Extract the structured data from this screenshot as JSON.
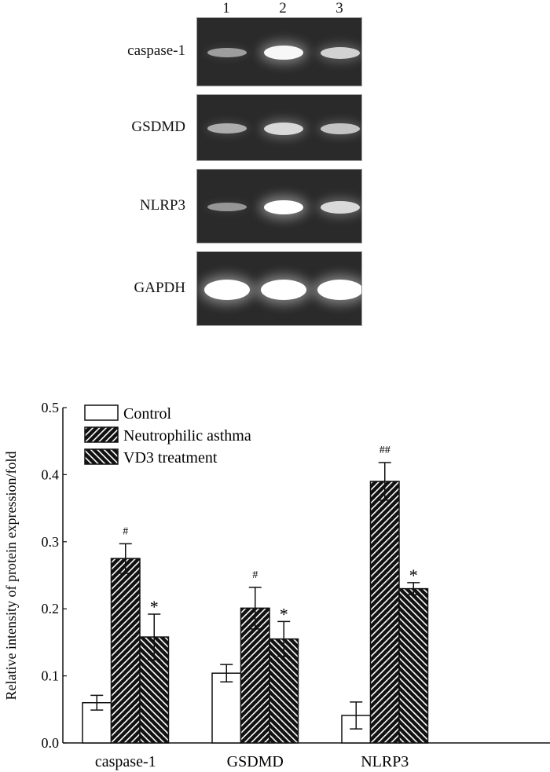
{
  "gel": {
    "lanes": [
      "1",
      "2",
      "3"
    ],
    "rows": [
      {
        "label": "caspase-1",
        "intensity": [
          0.35,
          0.95,
          0.7
        ]
      },
      {
        "label": "GSDMD",
        "intensity": [
          0.45,
          0.75,
          0.6
        ]
      },
      {
        "label": "NLRP3",
        "intensity": [
          0.3,
          1.0,
          0.75
        ]
      },
      {
        "label": "GAPDH",
        "intensity": [
          1.0,
          1.0,
          1.0
        ]
      }
    ]
  },
  "chart_data": {
    "type": "bar",
    "categories": [
      "caspase-1",
      "GSDMD",
      "NLRP3"
    ],
    "series": [
      {
        "name": "Control",
        "values": [
          0.06,
          0.104,
          0.041
        ],
        "errors": [
          0.011,
          0.013,
          0.02
        ],
        "marks": [
          "",
          "",
          ""
        ],
        "pattern": "none"
      },
      {
        "name": "Neutrophilic asthma",
        "values": [
          0.275,
          0.201,
          0.39
        ],
        "errors": [
          0.022,
          0.031,
          0.028
        ],
        "marks": [
          "#",
          "#",
          "##"
        ],
        "pattern": "forward-hatch"
      },
      {
        "name": "VD3 treatment",
        "values": [
          0.158,
          0.155,
          0.23
        ],
        "errors": [
          0.034,
          0.026,
          0.009
        ],
        "marks": [
          "*",
          "*",
          "*"
        ],
        "pattern": "back-hatch"
      }
    ],
    "ylabel": "Relative intensity of protein expression/fold",
    "ylim": [
      0,
      0.5
    ],
    "yticks": [
      "0.0",
      "0.1",
      "0.2",
      "0.3",
      "0.4",
      "0.5"
    ],
    "legend": "top-left",
    "grid": false
  }
}
